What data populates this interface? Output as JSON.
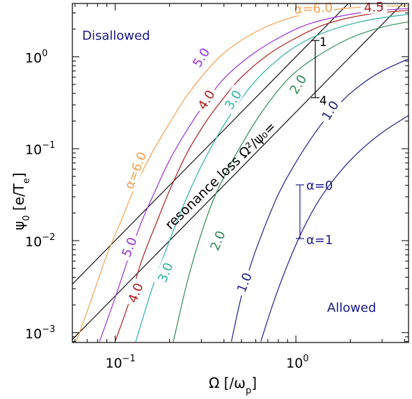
{
  "chart_data": {
    "type": "line",
    "xscale": "log",
    "yscale": "log",
    "xlim": [
      0.058,
      4.2
    ],
    "ylim": [
      0.00078,
      3.8
    ],
    "xlabel": "Ω [/ω",
    "xlabel_sub": "p",
    "xlabel_end": "]",
    "ylabel": "ψ",
    "ylabel_sub": "0",
    "ylabel_mid": " [e/T",
    "ylabel_sub2": "e",
    "ylabel_end": "]",
    "x_ticks": [
      {
        "value": 0.1,
        "base": "10",
        "exp": "−1"
      },
      {
        "value": 1,
        "base": "10",
        "exp": "0"
      }
    ],
    "y_ticks": [
      {
        "value": 0.001,
        "base": "10",
        "exp": "−3"
      },
      {
        "value": 0.01,
        "base": "10",
        "exp": "−2"
      },
      {
        "value": 0.1,
        "base": "10",
        "exp": "−1"
      },
      {
        "value": 1,
        "base": "10",
        "exp": "0"
      }
    ],
    "grid": false,
    "regions": {
      "upper": "Disallowed",
      "lower": "Allowed"
    },
    "resonance_label": "resonance loss Ω²/ψ₀=",
    "resonance_lines": [
      {
        "name": "1",
        "coef": 1
      },
      {
        "name": "4",
        "coef": 4
      }
    ],
    "family_legend": {
      "top_label": "α=0",
      "bottom_label": "α=1"
    },
    "series": [
      {
        "name": "6.0",
        "family": 0,
        "color": "#f5a050",
        "x": [
          0.061,
          0.075,
          0.09,
          0.11,
          0.13,
          0.16,
          0.2,
          0.25,
          0.32,
          0.4,
          0.55,
          0.8,
          1.2,
          2,
          3,
          4.2
        ],
        "y": [
          0.0008,
          0.0025,
          0.007,
          0.018,
          0.04,
          0.09,
          0.19,
          0.38,
          0.7,
          1.1,
          1.7,
          2.4,
          3,
          3.4,
          3.55,
          3.6
        ]
      },
      {
        "name": "5.0",
        "family": 0,
        "color": "#9b30d8",
        "x": [
          0.082,
          0.1,
          0.12,
          0.14,
          0.17,
          0.2,
          0.25,
          0.32,
          0.4,
          0.55,
          0.8,
          1.2,
          2,
          3,
          4.2
        ],
        "y": [
          0.0008,
          0.0024,
          0.007,
          0.016,
          0.038,
          0.075,
          0.16,
          0.33,
          0.58,
          1.0,
          1.6,
          2.3,
          2.9,
          3.2,
          3.35
        ]
      },
      {
        "name": "4.0",
        "family": 0,
        "color": "#b01e1e",
        "x": [
          0.1,
          0.12,
          0.14,
          0.17,
          0.2,
          0.25,
          0.32,
          0.4,
          0.5,
          0.7,
          1,
          1.5,
          2.5,
          4.2
        ],
        "y": [
          0.0008,
          0.0022,
          0.006,
          0.016,
          0.035,
          0.09,
          0.2,
          0.36,
          0.6,
          1.05,
          1.6,
          2.3,
          2.9,
          3.2
        ]
      },
      {
        "name": "3.0",
        "family": 0,
        "color": "#2eb0a8",
        "x": [
          0.13,
          0.16,
          0.2,
          0.25,
          0.3,
          0.37,
          0.45,
          0.55,
          0.7,
          1,
          1.5,
          2.5,
          4.2
        ],
        "y": [
          0.0008,
          0.003,
          0.01,
          0.03,
          0.065,
          0.14,
          0.26,
          0.45,
          0.75,
          1.3,
          1.9,
          2.5,
          2.9
        ]
      },
      {
        "name": "2.0",
        "family": 0,
        "color": "#2e8b57",
        "x": [
          0.21,
          0.25,
          0.3,
          0.35,
          0.42,
          0.5,
          0.6,
          0.75,
          0.95,
          1.3,
          2,
          3,
          4.2
        ],
        "y": [
          0.0008,
          0.0035,
          0.012,
          0.028,
          0.06,
          0.11,
          0.2,
          0.37,
          0.63,
          1.0,
          1.6,
          2.1,
          2.4
        ]
      },
      {
        "name": "1.0",
        "family": 0,
        "color": "#1f1f8f",
        "x": [
          0.44,
          0.5,
          0.58,
          0.68,
          0.8,
          0.95,
          1.15,
          1.4,
          1.8,
          2.3,
          3,
          4.2
        ],
        "y": [
          0.0008,
          0.0025,
          0.0065,
          0.015,
          0.032,
          0.06,
          0.11,
          0.19,
          0.33,
          0.5,
          0.7,
          0.95
        ]
      },
      {
        "name": "1.0",
        "family": 1,
        "color": "#1f1f8f",
        "x": [
          0.64,
          0.75,
          0.9,
          1.1,
          1.35,
          1.7,
          2.2,
          3,
          4.2
        ],
        "y": [
          0.0008,
          0.0021,
          0.0055,
          0.0135,
          0.028,
          0.052,
          0.09,
          0.15,
          0.23
        ]
      }
    ],
    "curve_labels": [
      {
        "text": "α=6.0",
        "color": "#f5a050",
        "x": 1.25,
        "y": 3.35,
        "angle": -3
      },
      {
        "text": "4.5",
        "color": "#b01e1e",
        "x": 2.7,
        "y": 3.45,
        "angle": -3
      },
      {
        "text": "5.0",
        "color": "#9b30d8",
        "x": 0.3,
        "y": 0.98,
        "angle": -58
      },
      {
        "text": "4.0",
        "color": "#b01e1e",
        "x": 0.32,
        "y": 0.34,
        "angle": -58
      },
      {
        "text": "3.0",
        "color": "#2eb0a8",
        "x": 0.45,
        "y": 0.34,
        "angle": -58
      },
      {
        "text": "2.0",
        "color": "#2e8b57",
        "x": 1.03,
        "y": 0.5,
        "angle": -58
      },
      {
        "text": "1.0",
        "color": "#1f1f8f",
        "x": 1.55,
        "y": 0.26,
        "angle": -58
      },
      {
        "text": "α=6.0",
        "color": "#f5a050",
        "x": 0.13,
        "y": 0.058,
        "angle": -68
      },
      {
        "text": "5.0",
        "color": "#9b30d8",
        "x": 0.12,
        "y": 0.0085,
        "angle": -68
      },
      {
        "text": "4.0",
        "color": "#b01e1e",
        "x": 0.13,
        "y": 0.0027,
        "angle": -68
      },
      {
        "text": "3.0",
        "color": "#2eb0a8",
        "x": 0.19,
        "y": 0.0045,
        "angle": -68
      },
      {
        "text": "2.0",
        "color": "#2e8b57",
        "x": 0.37,
        "y": 0.01,
        "angle": -68
      },
      {
        "text": "1.0",
        "color": "#1f1f8f",
        "x": 0.52,
        "y": 0.0035,
        "angle": -68
      }
    ]
  }
}
